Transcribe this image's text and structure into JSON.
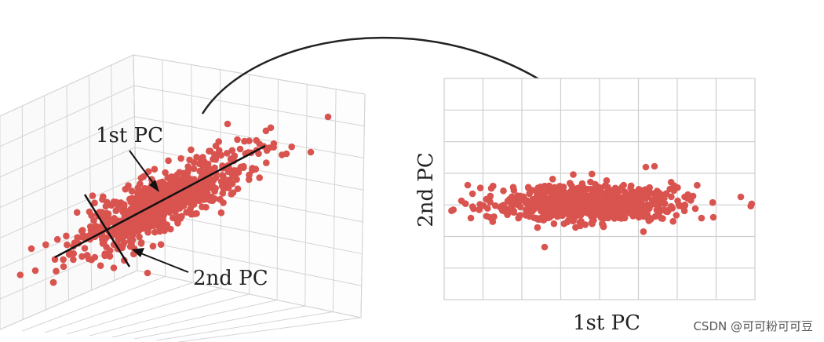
{
  "diagram": {
    "left_panel": {
      "label_first_pc": "1st PC",
      "label_second_pc": "2nd PC"
    },
    "right_panel": {
      "xlabel": "1st PC",
      "ylabel": "2nd PC"
    },
    "colors": {
      "points": "#d9534f",
      "grid": "#cfcfcf",
      "axis": "#111111"
    }
  },
  "watermark": "CSDN @可可粉可可豆"
}
